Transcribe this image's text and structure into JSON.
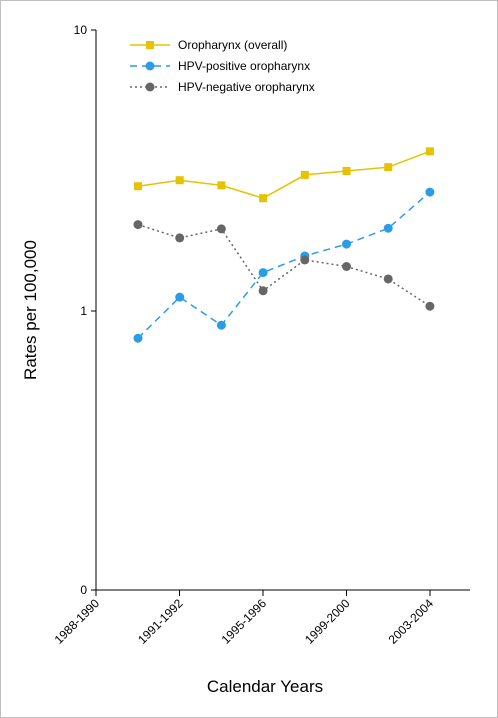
{
  "chart_data": {
    "type": "line",
    "xlabel": "Calendar Years",
    "ylabel": "Rates per 100,000",
    "x_tick_labels": [
      "1988-1990",
      "1991-1992",
      "1995-1996",
      "1999-2000",
      "2003-2004"
    ],
    "y_scale": "log",
    "y_tick_labels": [
      "0",
      "1",
      "10"
    ],
    "legend_position": "top-left",
    "grid": false,
    "series": [
      {
        "name": "Oropharynx (overall)",
        "color": "#e6c200",
        "marker": "square",
        "line_style": "solid",
        "values": [
          2.78,
          2.92,
          2.8,
          2.52,
          3.05,
          3.15,
          3.25,
          3.7
        ]
      },
      {
        "name": "HPV-positive oropharynx",
        "color": "#2c9be8",
        "marker": "circle",
        "line_style": "dashed",
        "values": [
          0.8,
          1.12,
          0.89,
          1.37,
          1.57,
          1.73,
          1.97,
          2.65
        ]
      },
      {
        "name": "HPV-negative oropharynx",
        "color": "#666666",
        "marker": "circle",
        "line_style": "dotted",
        "values": [
          2.03,
          1.82,
          1.96,
          1.18,
          1.52,
          1.44,
          1.3,
          1.04
        ]
      }
    ]
  }
}
